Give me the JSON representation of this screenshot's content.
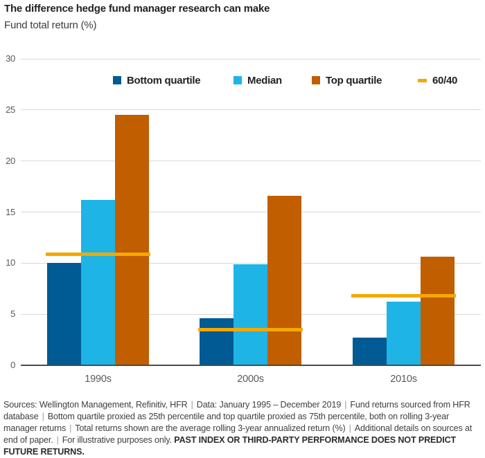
{
  "chart_data": {
    "type": "bar",
    "title": "The difference hedge fund manager research can make",
    "subtitle": "Fund total return (%)",
    "categories": [
      "1990s",
      "2000s",
      "2010s"
    ],
    "series": [
      {
        "name": "Bottom quartile",
        "color": "#005a93",
        "values": [
          10.0,
          4.6,
          2.7
        ]
      },
      {
        "name": "Median",
        "color": "#1eb4e6",
        "values": [
          16.2,
          9.9,
          6.2
        ]
      },
      {
        "name": "Top quartile",
        "color": "#c05e00",
        "values": [
          24.5,
          16.6,
          10.6
        ]
      }
    ],
    "overlay_line": {
      "name": "60/40",
      "color": "#f5a800",
      "values": [
        10.9,
        3.5,
        6.8
      ]
    },
    "ylabel": "Fund total return (%)",
    "xlabel": "",
    "yticks": [
      0,
      5,
      10,
      15,
      20,
      25,
      30
    ],
    "ylim": [
      0,
      30
    ],
    "grid": "horizontal gridlines on",
    "legend_position": "top"
  },
  "footnote": {
    "segments": [
      "Sources: Wellington Management, Refinitiv, HFR",
      "Data: January 1995 – December 2019",
      "Fund returns sourced from HFR database",
      "Bottom quartile proxied as 25th percentile and top quartile proxied as 75th percentile, both on rolling 3-year manager returns",
      "Total returns shown are the average rolling 3-year annualized return (%)",
      "Additional details on sources at end of paper.",
      "For illustrative purposes only."
    ],
    "separator": "|",
    "bold": "PAST INDEX OR THIRD-PARTY PERFORMANCE DOES NOT PREDICT FUTURE RETURNS."
  }
}
